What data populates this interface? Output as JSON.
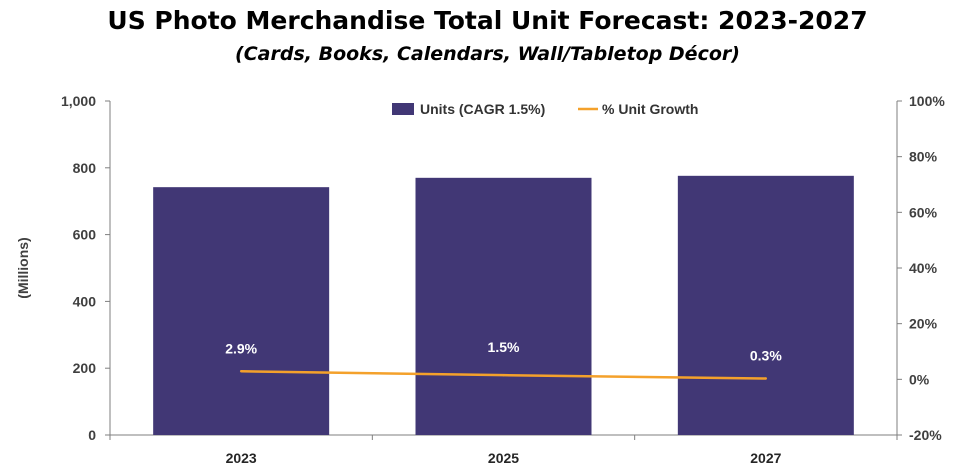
{
  "chart_data": {
    "type": "bar",
    "title": "US Photo Merchandise Total Unit Forecast: 2023-2027",
    "subtitle": "(Cards, Books, Calendars, Wall/Tabletop Décor)",
    "ylabel": "(Millions)",
    "categories": [
      "2023",
      "2025",
      "2027"
    ],
    "series": [
      {
        "name": "Units (CAGR 1.5%)",
        "type": "bar",
        "axis": "left",
        "color": "#413775",
        "values": [
          742,
          770,
          776
        ]
      },
      {
        "name": "% Unit Growth",
        "type": "line",
        "axis": "right",
        "color": "#F4A12B",
        "values": [
          2.9,
          1.5,
          0.3
        ],
        "labels": [
          "2.9%",
          "1.5%",
          "0.3%"
        ]
      }
    ],
    "ylim": [
      0,
      1000
    ],
    "yticks": [
      "0",
      "200",
      "400",
      "600",
      "800",
      "1,000"
    ],
    "yticks_values": [
      0,
      200,
      400,
      600,
      800,
      1000
    ],
    "y2lim": [
      -20,
      100
    ],
    "y2ticks": [
      "-20%",
      "0%",
      "20%",
      "40%",
      "60%",
      "80%",
      "100%"
    ],
    "y2ticks_values": [
      -20,
      0,
      20,
      40,
      60,
      80,
      100
    ],
    "legend_position": "top-center",
    "grid": false
  }
}
